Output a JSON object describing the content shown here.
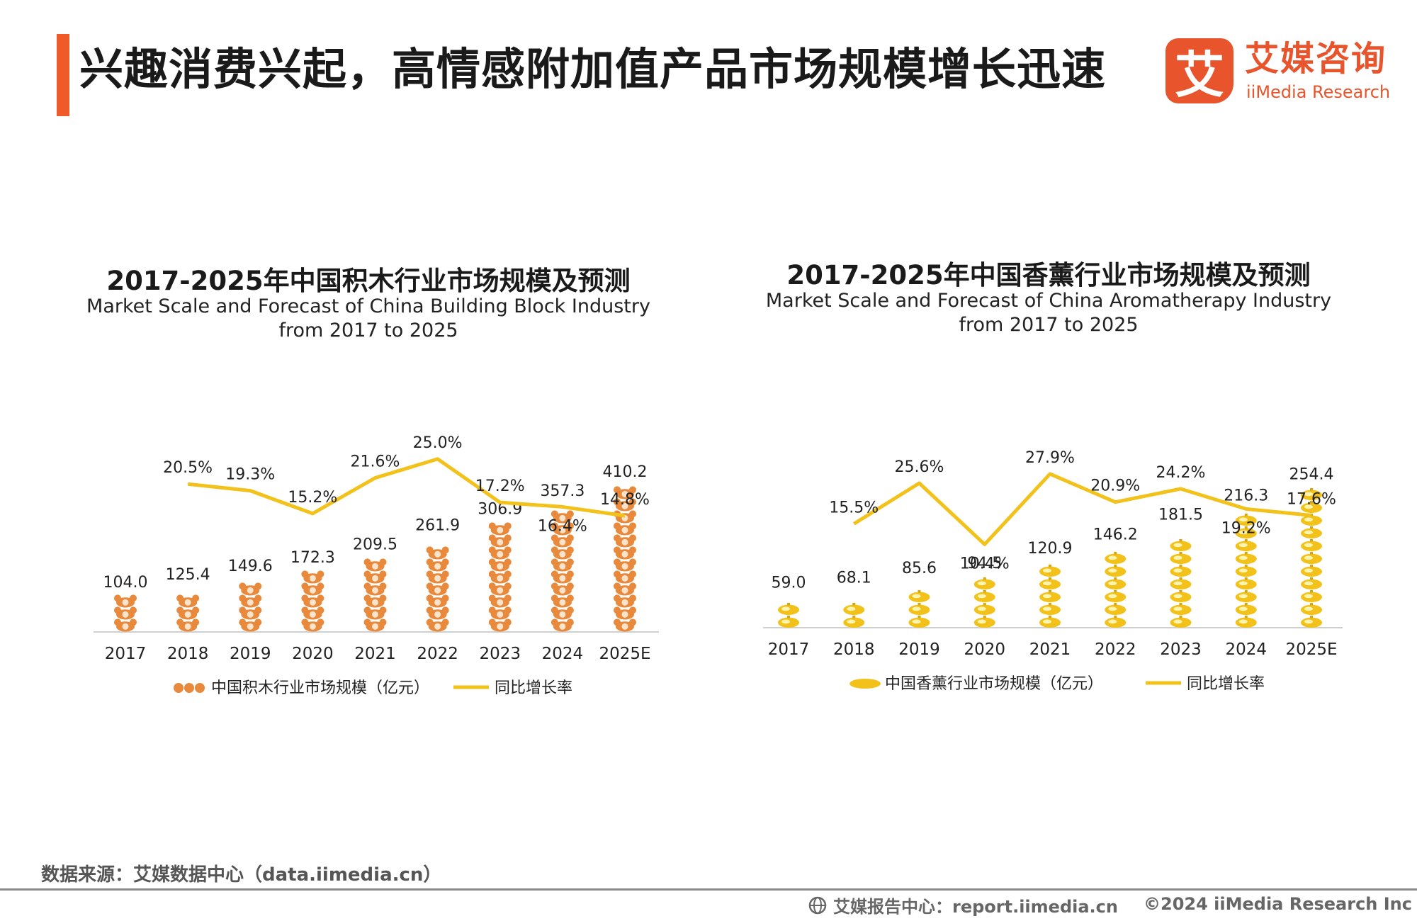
{
  "header": {
    "title": "兴趣消费兴起，高情感附加值产品市场规模增长迅速",
    "accent_color": "#f05a28"
  },
  "logo": {
    "mark": "艾",
    "name_cn": "艾媒咨询",
    "name_en": "iiMedia Research",
    "color": "#e8542c"
  },
  "source": "数据来源：艾媒数据中心（data.iimedia.cn）",
  "footer": {
    "report_center": "艾媒报告中心：report.iimedia.cn",
    "copyright": "©2024  iiMedia Research  Inc"
  },
  "chart_data": [
    {
      "type": "bar",
      "title": "2017-2025年中国积木行业市场规模及预测",
      "subtitle_line1": "Market Scale and Forecast of China Building Block Industry",
      "subtitle_line2": "from 2017 to 2025",
      "categories": [
        "2017",
        "2018",
        "2019",
        "2020",
        "2021",
        "2022",
        "2023",
        "2024",
        "2025E"
      ],
      "series": [
        {
          "name": "中国积木行业市场规模（亿元）",
          "kind": "bar",
          "color": "#e8893c",
          "values": [
            104.0,
            125.4,
            149.6,
            172.3,
            209.5,
            261.9,
            306.9,
            357.3,
            410.2
          ],
          "labels": [
            "104.0",
            "125.4",
            "149.6",
            "172.3",
            "209.5",
            "261.9",
            "306.9",
            "357.3",
            "410.2"
          ]
        },
        {
          "name": "同比增长率",
          "kind": "line",
          "color": "#f2c21a",
          "values": [
            null,
            20.5,
            19.3,
            15.2,
            21.6,
            25.0,
            17.2,
            16.4,
            14.8
          ],
          "labels": [
            "",
            "20.5%",
            "19.3%",
            "15.2%",
            "21.6%",
            "25.0%",
            "17.2%",
            "16.4%",
            "14.8%"
          ]
        }
      ],
      "ylim": [
        0,
        420
      ],
      "growth_range": [
        12,
        26
      ]
    },
    {
      "type": "bar",
      "title": "2017-2025年中国香薰行业市场规模及预测",
      "subtitle_line1": "Market Scale and Forecast of China Aromatherapy Industry",
      "subtitle_line2": "from 2017 to 2025",
      "categories": [
        "2017",
        "2018",
        "2019",
        "2020",
        "2021",
        "2022",
        "2023",
        "2024",
        "2025E"
      ],
      "series": [
        {
          "name": "中国香薰行业市场规模（亿元）",
          "kind": "bar",
          "color": "#f2c21a",
          "values": [
            59.0,
            68.1,
            85.6,
            94.5,
            120.9,
            146.2,
            181.5,
            216.3,
            254.4
          ],
          "labels": [
            "59.0",
            "68.1",
            "85.6",
            "94.5",
            "120.9",
            "146.2",
            "181.5",
            "216.3",
            "254.4"
          ]
        },
        {
          "name": "同比增长率",
          "kind": "line",
          "color": "#f2c21a",
          "values": [
            null,
            15.5,
            25.6,
            10.4,
            27.9,
            20.9,
            24.2,
            19.2,
            17.6
          ],
          "labels": [
            "",
            "15.5%",
            "25.6%",
            "10.4%",
            "27.9%",
            "20.9%",
            "24.2%",
            "19.2%",
            "17.6%"
          ]
        }
      ],
      "ylim": [
        0,
        260
      ],
      "growth_range": [
        8,
        30
      ]
    }
  ]
}
